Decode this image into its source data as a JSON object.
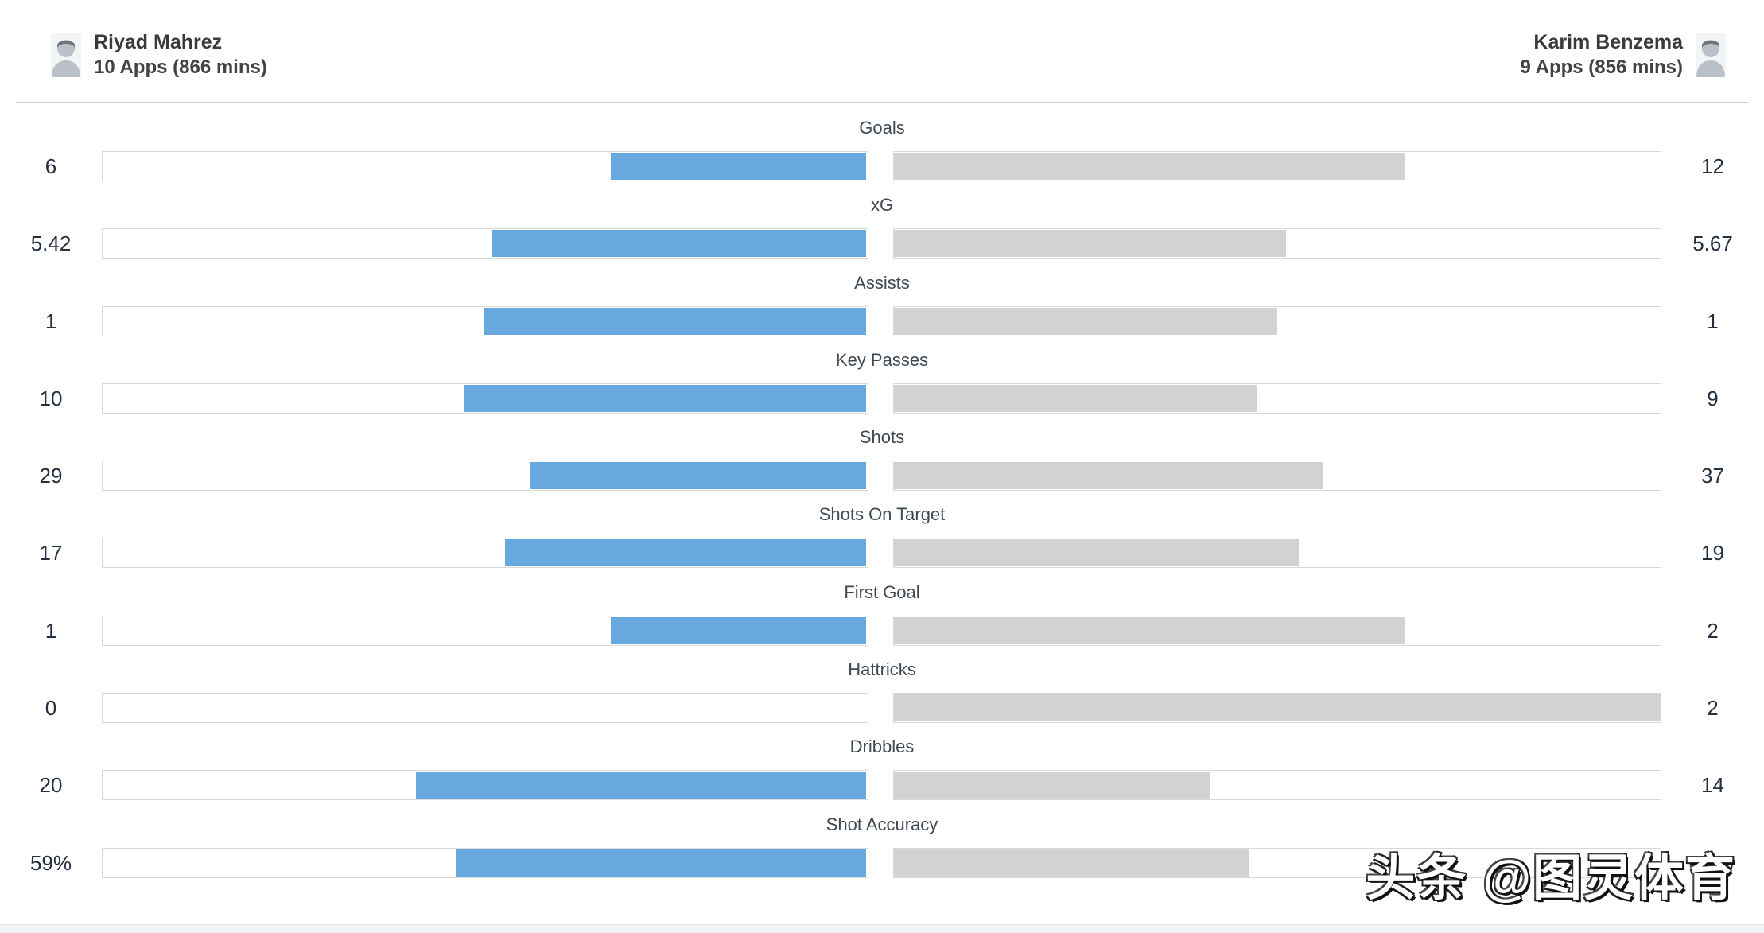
{
  "header": {
    "left_player": {
      "name": "Riyad Mahrez",
      "meta": "10 Apps (866 mins)"
    },
    "right_player": {
      "name": "Karim Benzema",
      "meta": "9 Apps (856 mins)"
    }
  },
  "chart_data": {
    "type": "bar",
    "subtype": "head-to-head-comparison",
    "orientation": "horizontal",
    "scale": "each bar fill = player value / (left value + right value) of that stat",
    "legend_position": "none",
    "grid": false,
    "categories": [
      "Goals",
      "xG",
      "Assists",
      "Key Passes",
      "Shots",
      "Shots On Target",
      "First Goal",
      "Hattricks",
      "Dribbles",
      "Shot Accuracy"
    ],
    "series": [
      {
        "name": "Riyad Mahrez",
        "side": "left",
        "color": "#67a8de",
        "values": [
          6,
          5.42,
          1,
          10,
          29,
          17,
          1,
          0,
          20,
          59
        ],
        "labels": [
          "6",
          "5.42",
          "1",
          "10",
          "29",
          "17",
          "1",
          "0",
          "20",
          "59%"
        ]
      },
      {
        "name": "Karim Benzema",
        "side": "right",
        "color": "#d2d2d2",
        "values": [
          12,
          5.67,
          1,
          9,
          37,
          19,
          2,
          2,
          14,
          51
        ],
        "labels": [
          "12",
          "5.67",
          "1",
          "9",
          "37",
          "19",
          "2",
          "2",
          "14",
          "51%"
        ]
      }
    ]
  },
  "colors": {
    "left_fill": "#67a8de",
    "right_fill": "#d2d2d2",
    "track_border": "#d9d9d9",
    "label_text": "#3e4954",
    "value_text": "#25303f",
    "header_divider": "#cccccc"
  },
  "watermark": {
    "text": "头条 @图灵体育"
  }
}
